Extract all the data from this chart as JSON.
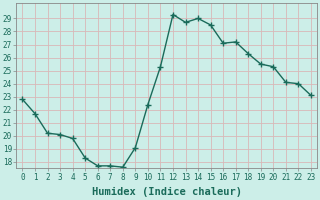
{
  "xlabel": "Humidex (Indice chaleur)",
  "x": [
    0,
    1,
    2,
    3,
    4,
    5,
    6,
    7,
    8,
    9,
    10,
    11,
    12,
    13,
    14,
    15,
    16,
    17,
    18,
    19,
    20,
    21,
    22,
    23
  ],
  "y": [
    22.8,
    21.7,
    20.2,
    20.1,
    19.8,
    18.3,
    17.7,
    17.7,
    17.6,
    19.1,
    22.4,
    25.3,
    29.3,
    28.7,
    29.0,
    28.5,
    27.1,
    27.2,
    26.3,
    25.5,
    25.3,
    24.1,
    24.0,
    23.1
  ],
  "line_color": "#1a6b5a",
  "marker": "+",
  "marker_size": 4,
  "marker_linewidth": 1.0,
  "bg_color": "#cceee8",
  "grid_color": "#d9b8b8",
  "ylim": [
    17.5,
    30.2
  ],
  "xlim": [
    -0.5,
    23.5
  ],
  "yticks": [
    18,
    19,
    20,
    21,
    22,
    23,
    24,
    25,
    26,
    27,
    28,
    29
  ],
  "xticks": [
    0,
    1,
    2,
    3,
    4,
    5,
    6,
    7,
    8,
    9,
    10,
    11,
    12,
    13,
    14,
    15,
    16,
    17,
    18,
    19,
    20,
    21,
    22,
    23
  ],
  "tick_fontsize": 5.5,
  "xlabel_fontsize": 7.5,
  "line_width": 1.0
}
